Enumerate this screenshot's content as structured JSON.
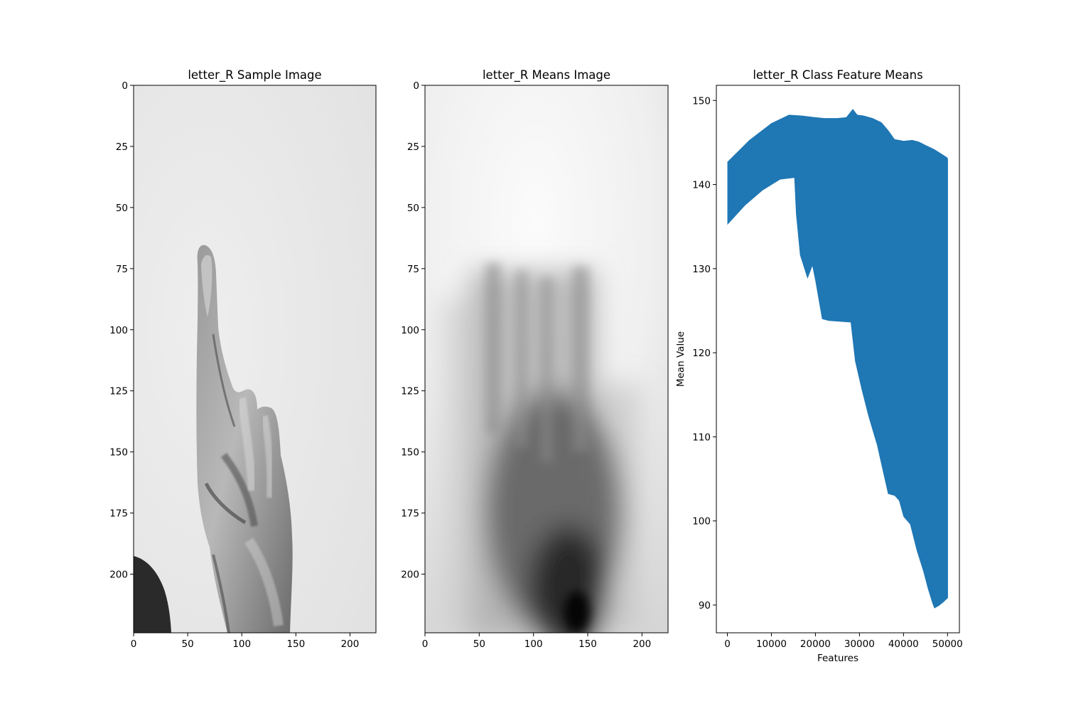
{
  "chart_data": [
    {
      "type": "image",
      "title": "letter_R Sample Image",
      "xlim": [
        0,
        224
      ],
      "ylim": [
        224,
        0
      ],
      "xticks": [
        0,
        50,
        100,
        150,
        200
      ],
      "yticks": [
        0,
        25,
        50,
        75,
        100,
        125,
        150,
        175,
        200
      ],
      "xlabel": "",
      "ylabel": "",
      "colormap": "gray"
    },
    {
      "type": "image",
      "title": "letter_R Means Image",
      "xlim": [
        0,
        224
      ],
      "ylim": [
        224,
        0
      ],
      "xticks": [
        0,
        50,
        100,
        150,
        200
      ],
      "yticks": [
        0,
        25,
        50,
        75,
        100,
        125,
        150,
        175,
        200
      ],
      "xlabel": "",
      "ylabel": "",
      "colormap": "gray"
    },
    {
      "type": "area",
      "title": "letter_R Class Feature Means",
      "xlabel": "Features",
      "ylabel": "Mean Value",
      "xlim": [
        -2500,
        52700
      ],
      "ylim": [
        86.7,
        151.8
      ],
      "xticks": [
        0,
        10000,
        20000,
        30000,
        40000,
        50000
      ],
      "yticks": [
        90,
        100,
        110,
        120,
        130,
        140,
        150
      ],
      "color": "#1f77b4",
      "upper": {
        "x": [
          0,
          5000,
          10000,
          14000,
          17000,
          20000,
          22000,
          25000,
          27000,
          28500,
          29500,
          31000,
          33000,
          35000,
          36500,
          38000,
          40000,
          42000,
          43500,
          45000,
          47000,
          48500,
          50000,
          50100
        ],
        "y": [
          142.7,
          145.3,
          147.3,
          148.3,
          148.2,
          148.0,
          147.9,
          147.9,
          148.0,
          149.0,
          148.3,
          148.2,
          147.9,
          147.4,
          146.5,
          145.4,
          145.2,
          145.3,
          145.1,
          144.7,
          144.2,
          143.7,
          143.2,
          143.0
        ]
      },
      "lower": {
        "x": [
          0,
          4000,
          8000,
          12000,
          15200,
          15600,
          16500,
          18200,
          19300,
          20000,
          21500,
          23000,
          25500,
          28000,
          29000,
          30500,
          32000,
          34000,
          35500,
          36500,
          38000,
          39000,
          40000,
          41500,
          43000,
          44500,
          45500,
          46500,
          47000,
          48000,
          49000,
          50000,
          50100
        ],
        "y": [
          135.2,
          137.5,
          139.3,
          140.6,
          140.8,
          136.5,
          131.6,
          128.8,
          130.3,
          128.5,
          124.0,
          123.8,
          123.7,
          123.6,
          119.0,
          115.6,
          112.5,
          109.0,
          105.5,
          103.2,
          103.0,
          102.4,
          100.5,
          99.6,
          96.5,
          94.0,
          92.0,
          90.3,
          89.6,
          89.9,
          90.3,
          90.8,
          90.8
        ]
      }
    }
  ]
}
